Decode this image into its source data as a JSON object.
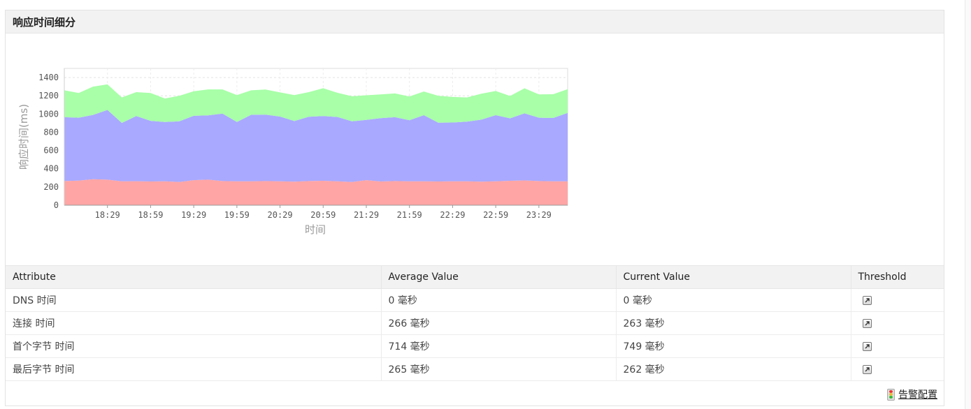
{
  "panel": {
    "title": "响应时间细分"
  },
  "chart_data": {
    "type": "area",
    "stacked": true,
    "xlabel": "时间",
    "ylabel": "响应时间(ms)",
    "ylim": [
      0,
      1500
    ],
    "yticks": [
      0,
      200,
      400,
      600,
      800,
      1000,
      1200,
      1400
    ],
    "xtick_labels": [
      "18:29",
      "18:59",
      "19:29",
      "19:59",
      "20:29",
      "20:59",
      "21:29",
      "21:59",
      "22:29",
      "22:59",
      "23:29"
    ],
    "grid": true,
    "legend_position": "bottom",
    "x": [
      "17:59",
      "18:09",
      "18:19",
      "18:29",
      "18:39",
      "18:49",
      "18:59",
      "19:09",
      "19:19",
      "19:29",
      "19:39",
      "19:49",
      "19:59",
      "20:09",
      "20:19",
      "20:29",
      "20:39",
      "20:49",
      "20:59",
      "21:09",
      "21:19",
      "21:29",
      "21:39",
      "21:49",
      "21:59",
      "22:09",
      "22:19",
      "22:29",
      "22:39",
      "22:49",
      "22:59",
      "23:09",
      "23:19",
      "23:29",
      "23:39",
      "23:49"
    ],
    "series": [
      {
        "name": "DNS 时间",
        "color": "#1f3f7a",
        "values": [
          0,
          0,
          0,
          0,
          0,
          0,
          0,
          0,
          0,
          0,
          0,
          0,
          0,
          0,
          0,
          0,
          0,
          0,
          0,
          0,
          0,
          0,
          0,
          0,
          0,
          0,
          0,
          0,
          0,
          0,
          0,
          0,
          0,
          0,
          0,
          0
        ]
      },
      {
        "name": "连接 时间",
        "color": "#ff4d4d",
        "values": [
          265,
          270,
          285,
          280,
          262,
          263,
          260,
          262,
          255,
          275,
          280,
          265,
          262,
          262,
          265,
          262,
          258,
          265,
          268,
          262,
          255,
          275,
          260,
          265,
          262,
          262,
          260,
          262,
          262,
          258,
          262,
          268,
          272,
          265,
          262,
          262
        ]
      },
      {
        "name": "首个字节 时间",
        "color": "#4d4dff",
        "values": [
          700,
          690,
          705,
          765,
          640,
          715,
          665,
          650,
          665,
          705,
          705,
          740,
          650,
          730,
          728,
          710,
          665,
          705,
          710,
          705,
          665,
          660,
          695,
          700,
          670,
          725,
          645,
          645,
          655,
          680,
          725,
          685,
          735,
          695,
          695,
          750
        ]
      },
      {
        "name": "最后字节 时间",
        "color": "#4dff4d",
        "values": [
          295,
          270,
          310,
          280,
          280,
          262,
          305,
          258,
          280,
          270,
          285,
          265,
          295,
          268,
          275,
          265,
          285,
          270,
          305,
          265,
          275,
          270,
          260,
          260,
          260,
          260,
          295,
          280,
          265,
          285,
          265,
          245,
          275,
          255,
          260,
          260
        ]
      }
    ]
  },
  "table": {
    "headers": [
      "Attribute",
      "Average Value",
      "Current Value",
      "Threshold"
    ],
    "rows": [
      {
        "attribute": "DNS 时间",
        "average": "0 毫秒",
        "current": "0 毫秒"
      },
      {
        "attribute": "连接 时间",
        "average": "266 毫秒",
        "current": "263 毫秒"
      },
      {
        "attribute": "首个字节 时间",
        "average": "714 毫秒",
        "current": "749 毫秒"
      },
      {
        "attribute": "最后字节 时间",
        "average": "265 毫秒",
        "current": "262 毫秒"
      }
    ]
  },
  "footer": {
    "alarm_config": "告警配置",
    "icon": "traffic-light-icon"
  }
}
